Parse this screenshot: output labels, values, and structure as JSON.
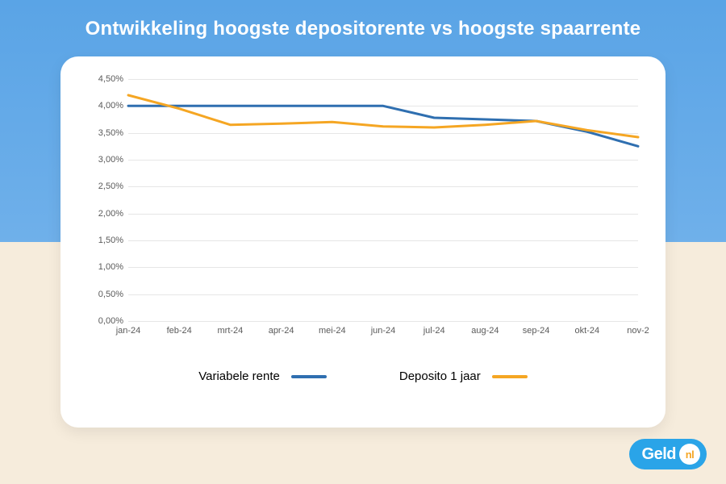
{
  "title": "Ontwikkeling hoogste depositorente vs hoogste spaarrente",
  "chart": {
    "type": "line",
    "background_color": "#ffffff",
    "grid_color": "#e6e6e6",
    "axis_label_color": "#5a5a5a",
    "axis_label_fontsize": 11,
    "y": {
      "min": 0.0,
      "max": 4.5,
      "step": 0.5,
      "ticks": [
        "0,00%",
        "0,50%",
        "1,00%",
        "1,50%",
        "2,00%",
        "2,50%",
        "3,00%",
        "3,50%",
        "4,00%",
        "4,50%"
      ]
    },
    "x": {
      "categories": [
        "jan-24",
        "feb-24",
        "mrt-24",
        "apr-24",
        "mei-24",
        "jun-24",
        "jul-24",
        "aug-24",
        "sep-24",
        "okt-24",
        "nov-2"
      ]
    },
    "series": [
      {
        "name": "Variabele rente",
        "color": "#2f6fb0",
        "line_width": 3,
        "values": [
          4.0,
          4.0,
          4.0,
          4.0,
          4.0,
          4.0,
          3.78,
          3.75,
          3.72,
          3.52,
          3.25
        ]
      },
      {
        "name": "Deposito 1 jaar",
        "color": "#f5a623",
        "line_width": 3,
        "values": [
          4.2,
          3.95,
          3.65,
          3.67,
          3.7,
          3.62,
          3.6,
          3.65,
          3.72,
          3.55,
          3.42
        ]
      }
    ],
    "legend": {
      "fontsize": 15,
      "items": [
        {
          "label": "Variabele rente",
          "color": "#2f6fb0"
        },
        {
          "label": "Deposito 1 jaar",
          "color": "#f5a623"
        }
      ]
    }
  },
  "brand": {
    "text": "Geld",
    "badge": "nl",
    "pill_color": "#2aa4e8",
    "badge_color": "#f5a623"
  },
  "page_bg": {
    "top": "#5aa4e6",
    "bottom": "#f6ecdc"
  }
}
